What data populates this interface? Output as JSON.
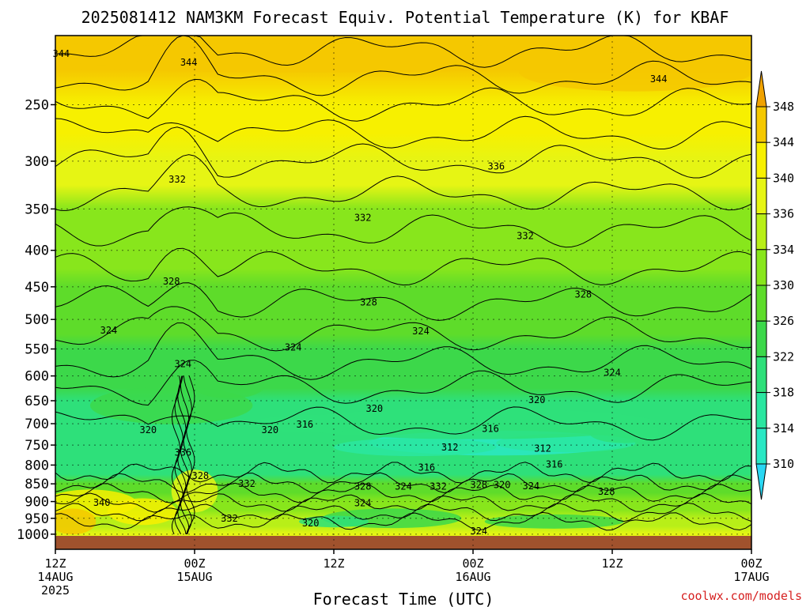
{
  "chart_data": {
    "type": "contour",
    "title": "2025081412 NAM3KM Forecast Equiv. Potential Temperature (K) for KBAF",
    "xlabel": "Forecast Time (UTC)",
    "ylabel": "",
    "y_axis": {
      "scale": "log-pressure",
      "reversed": true,
      "ylim": [
        200,
        1050
      ],
      "ticks": [
        250,
        300,
        350,
        400,
        450,
        500,
        550,
        600,
        650,
        700,
        750,
        800,
        850,
        900,
        950,
        1000
      ]
    },
    "x_axis": {
      "xlim": [
        "2025-08-14T12Z",
        "2025-08-17T00Z"
      ],
      "ticks": [
        {
          "line1": "12Z",
          "line2": "14AUG",
          "line3": "2025"
        },
        {
          "line1": "00Z",
          "line2": "15AUG",
          "line3": ""
        },
        {
          "line1": "12Z",
          "line2": "",
          "line3": ""
        },
        {
          "line1": "00Z",
          "line2": "16AUG",
          "line3": ""
        },
        {
          "line1": "12Z",
          "line2": "",
          "line3": ""
        },
        {
          "line1": "00Z",
          "line2": "17AUG",
          "line3": ""
        }
      ]
    },
    "grid": true,
    "colorbar": {
      "levels": [
        310,
        314,
        318,
        322,
        326,
        330,
        334,
        336,
        340,
        344,
        348
      ],
      "colors": [
        "#2ad7f3",
        "#2ae8c4",
        "#2ae6a0",
        "#2ee07a",
        "#3cd84a",
        "#5edc2a",
        "#88e61c",
        "#b8ef18",
        "#e6f514",
        "#f7f000",
        "#f5c800",
        "#f0a200"
      ],
      "extend": "both",
      "placement": "right"
    },
    "contour_interval": 2,
    "contour_labels": [
      {
        "t": 0.5,
        "p": 212,
        "value": "344"
      },
      {
        "t": 11.5,
        "p": 218,
        "value": "344"
      },
      {
        "t": 52.0,
        "p": 230,
        "value": "344"
      },
      {
        "t": 10.5,
        "p": 318,
        "value": "332"
      },
      {
        "t": 26.5,
        "p": 360,
        "value": "332"
      },
      {
        "t": 38.0,
        "p": 305,
        "value": "336"
      },
      {
        "t": 40.5,
        "p": 382,
        "value": "332"
      },
      {
        "t": 10.0,
        "p": 442,
        "value": "328"
      },
      {
        "t": 27.0,
        "p": 473,
        "value": "328"
      },
      {
        "t": 45.5,
        "p": 461,
        "value": "328"
      },
      {
        "t": 4.6,
        "p": 518,
        "value": "324"
      },
      {
        "t": 11.0,
        "p": 577,
        "value": "324"
      },
      {
        "t": 20.5,
        "p": 547,
        "value": "324"
      },
      {
        "t": 31.5,
        "p": 519,
        "value": "324"
      },
      {
        "t": 48.0,
        "p": 594,
        "value": "324"
      },
      {
        "t": 27.5,
        "p": 667,
        "value": "320"
      },
      {
        "t": 41.5,
        "p": 648,
        "value": "320"
      },
      {
        "t": 8.0,
        "p": 714,
        "value": "320"
      },
      {
        "t": 18.5,
        "p": 714,
        "value": "320"
      },
      {
        "t": 21.5,
        "p": 702,
        "value": "316"
      },
      {
        "t": 34.0,
        "p": 756,
        "value": "312"
      },
      {
        "t": 42.0,
        "p": 758,
        "value": "312"
      },
      {
        "t": 37.5,
        "p": 712,
        "value": "316"
      },
      {
        "t": 43.0,
        "p": 798,
        "value": "316"
      },
      {
        "t": 32.0,
        "p": 806,
        "value": "316"
      },
      {
        "t": 11.0,
        "p": 768,
        "value": "336"
      },
      {
        "t": 12.5,
        "p": 828,
        "value": "328"
      },
      {
        "t": 16.5,
        "p": 850,
        "value": "332"
      },
      {
        "t": 30.0,
        "p": 857,
        "value": "324"
      },
      {
        "t": 33.0,
        "p": 857,
        "value": "332"
      },
      {
        "t": 26.5,
        "p": 857,
        "value": "328"
      },
      {
        "t": 36.5,
        "p": 853,
        "value": "328"
      },
      {
        "t": 38.5,
        "p": 853,
        "value": "320"
      },
      {
        "t": 41.0,
        "p": 856,
        "value": "324"
      },
      {
        "t": 26.5,
        "p": 905,
        "value": "324"
      },
      {
        "t": 47.5,
        "p": 872,
        "value": "328"
      },
      {
        "t": 4.0,
        "p": 903,
        "value": "340"
      },
      {
        "t": 15.0,
        "p": 951,
        "value": "332"
      },
      {
        "t": 22.0,
        "p": 965,
        "value": "320"
      },
      {
        "t": 36.5,
        "p": 990,
        "value": "324"
      }
    ]
  },
  "watermark": "coolwx.com/models"
}
